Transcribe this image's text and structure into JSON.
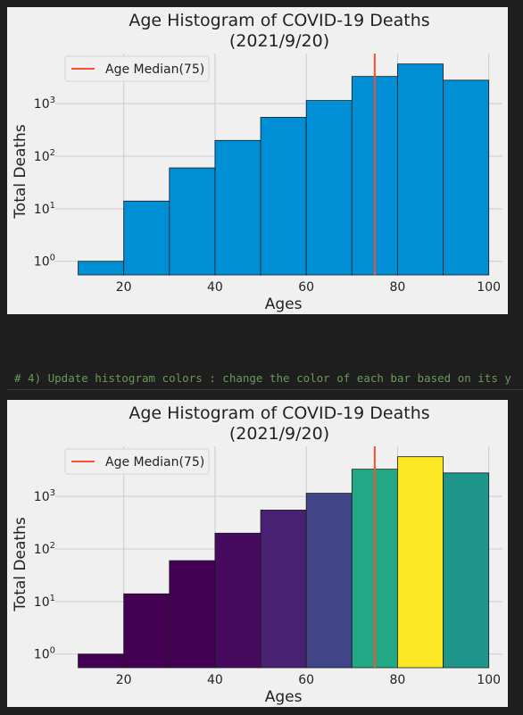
{
  "code_comment": "# 4) Update histogram colors : change the color of each bar based on its y",
  "chart_data": [
    {
      "type": "bar",
      "title": "Age Histogram of COVID-19 Deaths",
      "subtitle": "(2021/9/20)",
      "xlabel": "Ages",
      "ylabel": "Total Deaths",
      "yscale": "log",
      "bin_edges": [
        10,
        20,
        30,
        40,
        50,
        60,
        70,
        80,
        90,
        100
      ],
      "values": [
        1,
        14,
        60,
        200,
        550,
        1150,
        3300,
        5700,
        2800
      ],
      "bar_colors": [
        "#008fd5",
        "#008fd5",
        "#008fd5",
        "#008fd5",
        "#008fd5",
        "#008fd5",
        "#008fd5",
        "#008fd5",
        "#008fd5"
      ],
      "xlim": [
        5,
        103
      ],
      "ylim": [
        0.55,
        9000
      ],
      "x_ticks": [
        20,
        40,
        60,
        80,
        100
      ],
      "y_ticks": [
        {
          "value": 1,
          "label": "10",
          "exp": "0"
        },
        {
          "value": 10,
          "label": "10",
          "exp": "1"
        },
        {
          "value": 100,
          "label": "10",
          "exp": "2"
        },
        {
          "value": 1000,
          "label": "10",
          "exp": "3"
        }
      ],
      "median_line": {
        "x": 75,
        "label": "Age Median(75)",
        "color": "#fc4f30"
      },
      "legend_position": "top-left",
      "grid": true
    },
    {
      "type": "bar",
      "title": "Age Histogram of COVID-19 Deaths",
      "subtitle": "(2021/9/20)",
      "xlabel": "Ages",
      "ylabel": "Total Deaths",
      "yscale": "log",
      "bin_edges": [
        10,
        20,
        30,
        40,
        50,
        60,
        70,
        80,
        90,
        100
      ],
      "values": [
        1,
        14,
        60,
        200,
        550,
        1150,
        3300,
        5700,
        2800
      ],
      "bar_colors": [
        "#440154",
        "#440154",
        "#440154",
        "#460b5e",
        "#482172",
        "#414487",
        "#22a884",
        "#fde725",
        "#1f968b"
      ],
      "xlim": [
        5,
        103
      ],
      "ylim": [
        0.55,
        9000
      ],
      "x_ticks": [
        20,
        40,
        60,
        80,
        100
      ],
      "y_ticks": [
        {
          "value": 1,
          "label": "10",
          "exp": "0"
        },
        {
          "value": 10,
          "label": "10",
          "exp": "1"
        },
        {
          "value": 100,
          "label": "10",
          "exp": "2"
        },
        {
          "value": 1000,
          "label": "10",
          "exp": "3"
        }
      ],
      "median_line": {
        "x": 75,
        "label": "Age Median(75)",
        "color": "#fc4f30"
      },
      "legend_position": "top-left",
      "grid": true
    }
  ]
}
